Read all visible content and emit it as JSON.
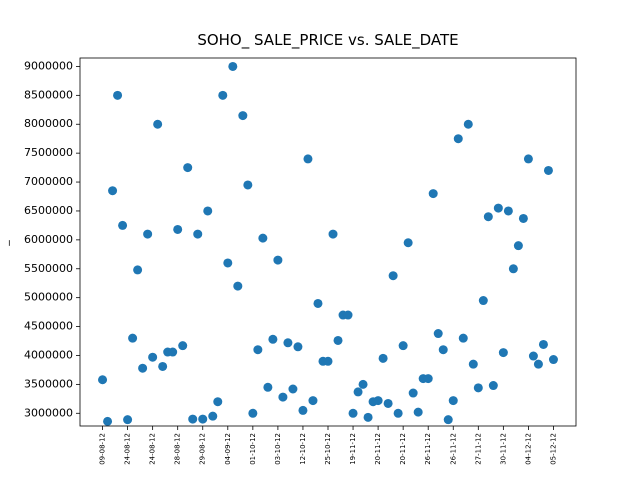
{
  "chart_data": {
    "type": "scatter",
    "title": "SOHO_ SALE_PRICE vs. SALE_DATE",
    "ylabel": "_",
    "categories": [
      "09-08-12",
      null,
      null,
      null,
      null,
      "24-08-12",
      null,
      null,
      null,
      null,
      "24-08-12",
      null,
      null,
      null,
      null,
      "28-08-12",
      null,
      null,
      null,
      null,
      "29-08-12",
      null,
      null,
      null,
      null,
      "04-09-12",
      null,
      null,
      null,
      null,
      "01-10-12",
      null,
      null,
      null,
      null,
      "03-10-12",
      null,
      null,
      null,
      null,
      "12-10-12",
      null,
      null,
      null,
      null,
      "25-10-12",
      null,
      null,
      null,
      null,
      "19-11-12",
      null,
      null,
      null,
      null,
      "20-11-12",
      null,
      null,
      null,
      null,
      "20-11-12",
      null,
      null,
      null,
      null,
      "26-11-12",
      null,
      null,
      null,
      null,
      "26-11-12",
      null,
      null,
      null,
      null,
      "27-11-12",
      null,
      null,
      null,
      null,
      "30-11-12",
      null,
      null,
      null,
      null,
      "04-12-12",
      null,
      null,
      null,
      null,
      "05-12-12"
    ],
    "values": [
      3580000,
      2860000,
      6850000,
      8500000,
      6250000,
      2890000,
      4300000,
      5480000,
      3780000,
      6100000,
      3970000,
      8000000,
      3810000,
      4060000,
      4060000,
      6180000,
      4170000,
      7250000,
      2900000,
      6100000,
      2900000,
      6500000,
      2950000,
      3200000,
      8500000,
      5600000,
      9000000,
      5200000,
      8150000,
      6950000,
      3000000,
      4100000,
      6030000,
      3450000,
      4280000,
      5650000,
      3280000,
      4220000,
      3420000,
      4150000,
      3050000,
      7400000,
      3220000,
      4900000,
      3900000,
      3900000,
      6100000,
      4260000,
      4700000,
      4700000,
      3000000,
      3370000,
      3500000,
      2930000,
      3200000,
      3220000,
      3950000,
      3170000,
      5380000,
      3000000,
      4170000,
      5950000,
      3350000,
      3020000,
      3600000,
      3600000,
      6800000,
      4380000,
      4100000,
      2890000,
      3220000,
      7750000,
      4300000,
      8000000,
      3850000,
      3440000,
      4950000,
      6400000,
      3480000,
      6550000,
      4050000,
      6500000,
      5500000,
      5900000,
      6370000,
      7400000,
      3990000,
      3850000,
      4190000,
      7200000,
      3930000
    ],
    "color": "#1f77b4",
    "ylim": [
      2780000,
      9146000
    ],
    "yticks": [
      3000000,
      3500000,
      4000000,
      4500000,
      5000000,
      5500000,
      6000000,
      6500000,
      7000000,
      7500000,
      8000000,
      8500000,
      9000000
    ]
  }
}
